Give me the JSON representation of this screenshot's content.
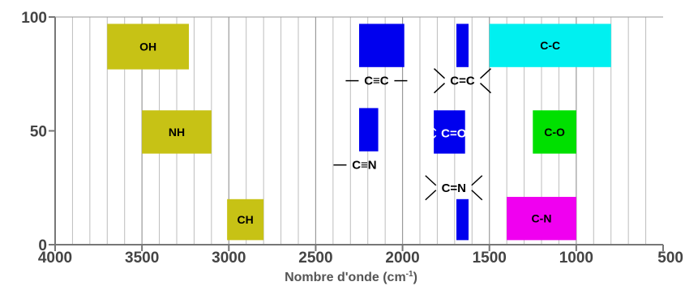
{
  "chart_data": {
    "type": "table",
    "title": "",
    "xlabel": "Nombre d'onde (cm-1)",
    "xlabel_parts": {
      "text": "Nombre d'onde (cm",
      "sup": "-1",
      "close": ")"
    },
    "ylabel": "",
    "xlim": [
      4000,
      500
    ],
    "ylim": [
      0,
      100
    ],
    "x_ticks": [
      4000,
      3500,
      3000,
      2500,
      2000,
      1500,
      1000,
      500
    ],
    "y_ticks": [
      0,
      50,
      100
    ],
    "grid": true,
    "bands": [
      {
        "label": "OH",
        "x_from": 3700,
        "x_to": 3230,
        "y_from": 77,
        "y_to": 97,
        "color": "#c7c215",
        "text_color": "#000000"
      },
      {
        "label": "NH",
        "x_from": 3500,
        "x_to": 3100,
        "y_from": 40,
        "y_to": 59,
        "color": "#c7c215",
        "text_color": "#000000"
      },
      {
        "label": "CH",
        "x_from": 3010,
        "x_to": 2800,
        "y_from": 2,
        "y_to": 20,
        "color": "#c7c215",
        "text_color": "#000000"
      },
      {
        "label": "",
        "x_from": 2250,
        "x_to": 1990,
        "y_from": 78,
        "y_to": 97,
        "color": "#0000ee",
        "text_color": "#ffffff"
      },
      {
        "label": "",
        "x_from": 2250,
        "x_to": 2140,
        "y_from": 41,
        "y_to": 60,
        "color": "#0000ee",
        "text_color": "#ffffff"
      },
      {
        "label": "",
        "x_from": 1820,
        "x_to": 1640,
        "y_from": 40,
        "y_to": 59,
        "color": "#0000ee",
        "text_color": "#ffffff"
      },
      {
        "label": "",
        "x_from": 1690,
        "x_to": 1620,
        "y_from": 78,
        "y_to": 97,
        "color": "#0000ee",
        "text_color": "#ffffff"
      },
      {
        "label": "",
        "x_from": 1690,
        "x_to": 1620,
        "y_from": 2,
        "y_to": 20,
        "color": "#0000ee",
        "text_color": "#ffffff"
      },
      {
        "label": "C-C",
        "x_from": 1500,
        "x_to": 800,
        "y_from": 78,
        "y_to": 97,
        "color": "#00f0f0",
        "text_color": "#000000"
      },
      {
        "label": "C-O",
        "x_from": 1250,
        "x_to": 1000,
        "y_from": 40,
        "y_to": 59,
        "color": "#00e000",
        "text_color": "#000000"
      },
      {
        "label": "C-N",
        "x_from": 1400,
        "x_to": 1000,
        "y_from": 2,
        "y_to": 21,
        "color": "#f000f0",
        "text_color": "#000000"
      }
    ],
    "structures": [
      {
        "text": "C≡C",
        "x": 2150,
        "y": 72,
        "bonds": "linear",
        "color": "#000000"
      },
      {
        "text": "C≡N",
        "x": 2220,
        "y": 35,
        "bonds": "single-left",
        "color": "#000000"
      },
      {
        "text": "C=C",
        "x": 1655,
        "y": 72,
        "bonds": "branched",
        "color": "#000000"
      },
      {
        "text": "C=O",
        "x": 1705,
        "y": 49,
        "bonds": "branched-left",
        "color": "#ffffff"
      },
      {
        "text": "C=N",
        "x": 1705,
        "y": 25,
        "bonds": "branched",
        "color": "#000000"
      }
    ]
  }
}
